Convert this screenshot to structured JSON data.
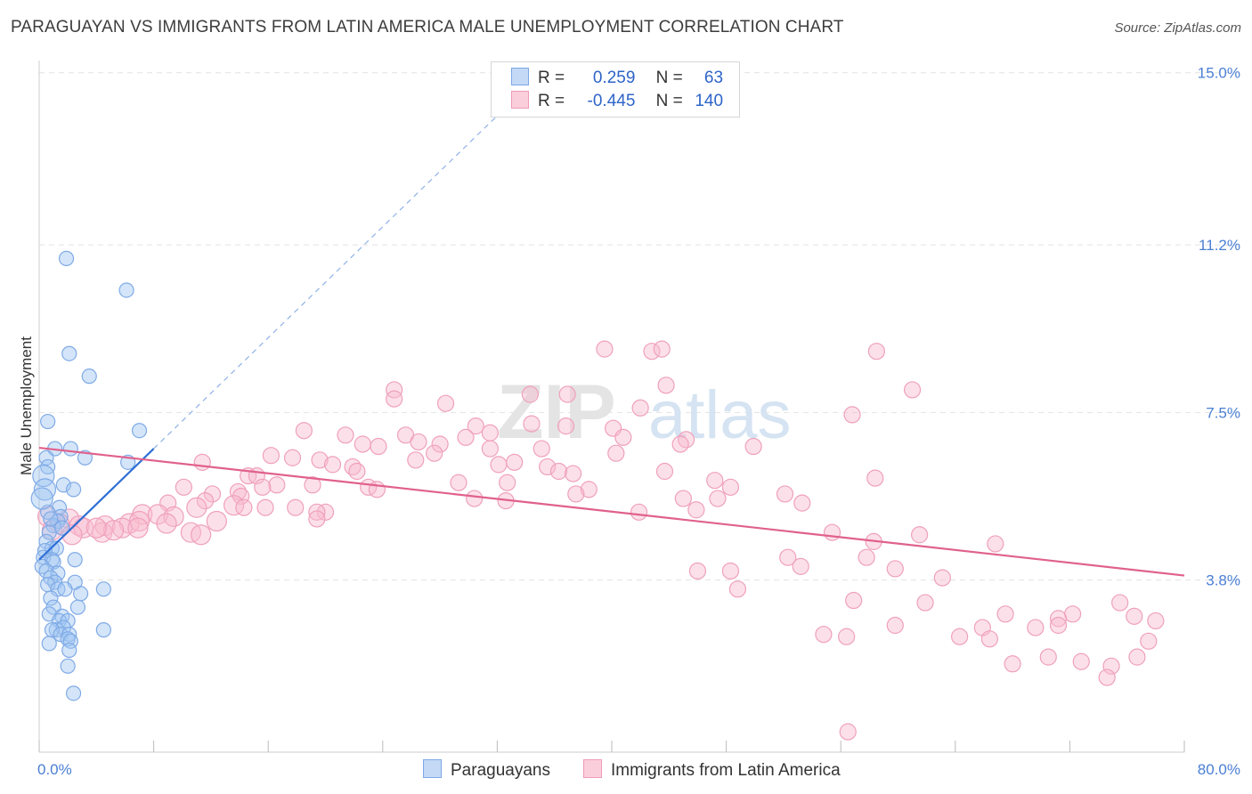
{
  "title": "PARAGUAYAN VS IMMIGRANTS FROM LATIN AMERICA MALE UNEMPLOYMENT CORRELATION CHART",
  "source": "Source: ZipAtlas.com",
  "watermark": {
    "zip": "ZIP",
    "atlas": "atlas"
  },
  "colors": {
    "blue": "#8ab4ec",
    "blue_line": "#2e6fd6",
    "pink": "#f0a2bd",
    "pink_line": "#e0618c",
    "tick": "#4a7fd4"
  },
  "legend_top": [
    {
      "r_label": "R =",
      "r_value": "0.259",
      "n_label": "N =",
      "n_value": "63"
    },
    {
      "r_label": "R =",
      "r_value": "-0.445",
      "n_label": "N =",
      "n_value": "140"
    }
  ],
  "legend_bottom": [
    {
      "label": "Paraguayans"
    },
    {
      "label": "Immigrants from Latin America"
    }
  ],
  "chart_data": {
    "type": "scatter",
    "title": "PARAGUAYAN VS IMMIGRANTS FROM LATIN AMERICA MALE UNEMPLOYMENT CORRELATION CHART",
    "xlabel": "",
    "ylabel": "Male Unemployment",
    "xlim": [
      0,
      80
    ],
    "ylim": [
      0,
      15.5
    ],
    "x_tick_labels": [
      "0.0%",
      "80.0%"
    ],
    "y_ticks": [
      3.8,
      7.5,
      11.2,
      15.0
    ],
    "y_tick_labels": [
      "3.8%",
      "7.5%",
      "11.2%",
      "15.0%"
    ],
    "grid": true,
    "series": [
      {
        "name": "Paraguayans",
        "r": 0.259,
        "n": 63,
        "trend": {
          "x0": 0,
          "y0": 4.25,
          "x1": 8,
          "y1": 6.7,
          "dash_to_x": 32
        },
        "points": [
          [
            1.9,
            10.9
          ],
          [
            6.1,
            10.2
          ],
          [
            2.1,
            8.8
          ],
          [
            3.5,
            8.3
          ],
          [
            0.6,
            7.3
          ],
          [
            7.0,
            7.1
          ],
          [
            1.1,
            6.7
          ],
          [
            2.2,
            6.7
          ],
          [
            3.2,
            6.5
          ],
          [
            0.5,
            6.5
          ],
          [
            6.2,
            6.4
          ],
          [
            0.6,
            6.3
          ],
          [
            0.3,
            6.1
          ],
          [
            0.4,
            5.8
          ],
          [
            1.7,
            5.9
          ],
          [
            2.4,
            5.8
          ],
          [
            1.4,
            5.4
          ],
          [
            0.6,
            5.3
          ],
          [
            1.5,
            5.2
          ],
          [
            1.3,
            5.1
          ],
          [
            1.0,
            5.0
          ],
          [
            0.7,
            4.85
          ],
          [
            1.6,
            4.95
          ],
          [
            0.5,
            4.65
          ],
          [
            0.9,
            4.5
          ],
          [
            1.2,
            4.5
          ],
          [
            0.4,
            4.45
          ],
          [
            0.3,
            4.3
          ],
          [
            0.9,
            4.25
          ],
          [
            2.5,
            4.25
          ],
          [
            1.0,
            4.2
          ],
          [
            0.2,
            4.1
          ],
          [
            0.5,
            4.0
          ],
          [
            1.3,
            3.95
          ],
          [
            0.8,
            3.85
          ],
          [
            1.1,
            3.75
          ],
          [
            0.6,
            3.7
          ],
          [
            2.5,
            3.75
          ],
          [
            1.3,
            3.6
          ],
          [
            1.8,
            3.6
          ],
          [
            4.5,
            3.6
          ],
          [
            2.9,
            3.5
          ],
          [
            0.8,
            3.4
          ],
          [
            1.0,
            3.2
          ],
          [
            2.7,
            3.2
          ],
          [
            0.7,
            3.05
          ],
          [
            1.6,
            3.0
          ],
          [
            1.4,
            2.9
          ],
          [
            2.0,
            2.9
          ],
          [
            1.2,
            2.7
          ],
          [
            1.7,
            2.75
          ],
          [
            0.9,
            2.7
          ],
          [
            4.5,
            2.7
          ],
          [
            1.5,
            2.6
          ],
          [
            2.1,
            2.6
          ],
          [
            2.0,
            2.5
          ],
          [
            2.2,
            2.45
          ],
          [
            0.7,
            2.4
          ],
          [
            2.1,
            2.25
          ],
          [
            2.0,
            1.9
          ],
          [
            2.4,
            1.3
          ],
          [
            0.2,
            5.6
          ],
          [
            0.8,
            5.15
          ]
        ]
      },
      {
        "name": "Immigrants from Latin America",
        "r": -0.445,
        "n": 140,
        "trend": {
          "x0": 0,
          "y0": 6.72,
          "x1": 80,
          "y1": 3.9
        },
        "points": [
          [
            39.5,
            8.9
          ],
          [
            42.8,
            8.85
          ],
          [
            43.5,
            8.9
          ],
          [
            58.5,
            8.85
          ],
          [
            43.8,
            8.1
          ],
          [
            61.0,
            8.0
          ],
          [
            24.8,
            8.0
          ],
          [
            34.3,
            7.9
          ],
          [
            36.9,
            7.9
          ],
          [
            24.8,
            7.8
          ],
          [
            28.4,
            7.7
          ],
          [
            42.0,
            7.6
          ],
          [
            56.8,
            7.45
          ],
          [
            34.4,
            7.25
          ],
          [
            30.5,
            7.2
          ],
          [
            36.8,
            7.2
          ],
          [
            40.1,
            7.15
          ],
          [
            18.5,
            7.1
          ],
          [
            31.5,
            7.05
          ],
          [
            25.6,
            7.0
          ],
          [
            21.4,
            7.0
          ],
          [
            40.8,
            6.95
          ],
          [
            29.8,
            6.95
          ],
          [
            26.5,
            6.85
          ],
          [
            22.6,
            6.8
          ],
          [
            45.2,
            6.9
          ],
          [
            28.0,
            6.8
          ],
          [
            23.7,
            6.75
          ],
          [
            31.5,
            6.7
          ],
          [
            35.1,
            6.7
          ],
          [
            44.8,
            6.8
          ],
          [
            49.9,
            6.75
          ],
          [
            27.6,
            6.6
          ],
          [
            40.3,
            6.6
          ],
          [
            16.2,
            6.55
          ],
          [
            17.7,
            6.5
          ],
          [
            19.6,
            6.45
          ],
          [
            26.3,
            6.45
          ],
          [
            11.4,
            6.4
          ],
          [
            20.5,
            6.35
          ],
          [
            33.2,
            6.4
          ],
          [
            21.9,
            6.3
          ],
          [
            32.1,
            6.35
          ],
          [
            35.5,
            6.3
          ],
          [
            36.3,
            6.2
          ],
          [
            14.6,
            6.1
          ],
          [
            15.2,
            6.1
          ],
          [
            22.2,
            6.2
          ],
          [
            37.3,
            6.15
          ],
          [
            43.7,
            6.2
          ],
          [
            29.3,
            5.95
          ],
          [
            19.1,
            5.9
          ],
          [
            16.6,
            5.9
          ],
          [
            23.0,
            5.85
          ],
          [
            32.7,
            5.95
          ],
          [
            47.2,
            6.0
          ],
          [
            58.4,
            6.05
          ],
          [
            10.1,
            5.85
          ],
          [
            15.6,
            5.85
          ],
          [
            12.1,
            5.7
          ],
          [
            13.9,
            5.75
          ],
          [
            23.6,
            5.8
          ],
          [
            38.4,
            5.8
          ],
          [
            48.3,
            5.85
          ],
          [
            14.1,
            5.65
          ],
          [
            37.5,
            5.7
          ],
          [
            30.4,
            5.6
          ],
          [
            32.6,
            5.55
          ],
          [
            47.4,
            5.6
          ],
          [
            52.1,
            5.7
          ],
          [
            11.6,
            5.55
          ],
          [
            9.0,
            5.5
          ],
          [
            45.0,
            5.6
          ],
          [
            53.3,
            5.5
          ],
          [
            11.0,
            5.4
          ],
          [
            13.6,
            5.45
          ],
          [
            14.3,
            5.4
          ],
          [
            15.8,
            5.4
          ],
          [
            17.9,
            5.4
          ],
          [
            20.0,
            5.3
          ],
          [
            7.2,
            5.25
          ],
          [
            8.3,
            5.25
          ],
          [
            9.4,
            5.2
          ],
          [
            19.4,
            5.3
          ],
          [
            45.9,
            5.35
          ],
          [
            41.9,
            5.3
          ],
          [
            0.6,
            5.2
          ],
          [
            2.1,
            5.15
          ],
          [
            6.3,
            5.05
          ],
          [
            7.0,
            5.1
          ],
          [
            8.9,
            5.05
          ],
          [
            12.4,
            5.1
          ],
          [
            19.4,
            5.15
          ],
          [
            1.4,
            5.05
          ],
          [
            2.8,
            5.0
          ],
          [
            4.6,
            5.0
          ],
          [
            5.8,
            4.95
          ],
          [
            6.9,
            4.95
          ],
          [
            0.9,
            4.9
          ],
          [
            3.1,
            4.95
          ],
          [
            4.4,
            4.85
          ],
          [
            5.2,
            4.9
          ],
          [
            10.6,
            4.85
          ],
          [
            11.3,
            4.8
          ],
          [
            4.0,
            4.95
          ],
          [
            2.3,
            4.8
          ],
          [
            55.4,
            4.85
          ],
          [
            61.5,
            4.8
          ],
          [
            58.3,
            4.65
          ],
          [
            66.8,
            4.6
          ],
          [
            52.3,
            4.3
          ],
          [
            57.8,
            4.3
          ],
          [
            53.2,
            4.1
          ],
          [
            59.8,
            4.05
          ],
          [
            46.0,
            4.0
          ],
          [
            48.3,
            4.0
          ],
          [
            63.1,
            3.85
          ],
          [
            48.8,
            3.6
          ],
          [
            56.9,
            3.35
          ],
          [
            61.9,
            3.3
          ],
          [
            75.5,
            3.3
          ],
          [
            67.5,
            3.05
          ],
          [
            72.2,
            3.05
          ],
          [
            76.5,
            3.0
          ],
          [
            59.8,
            2.8
          ],
          [
            78.0,
            2.9
          ],
          [
            71.2,
            2.95
          ],
          [
            54.8,
            2.6
          ],
          [
            65.9,
            2.75
          ],
          [
            56.4,
            2.55
          ],
          [
            64.3,
            2.55
          ],
          [
            66.4,
            2.5
          ],
          [
            69.6,
            2.75
          ],
          [
            71.2,
            2.8
          ],
          [
            77.5,
            2.45
          ],
          [
            72.8,
            2.0
          ],
          [
            74.9,
            1.9
          ],
          [
            76.7,
            2.1
          ],
          [
            68.0,
            1.95
          ],
          [
            70.5,
            2.1
          ],
          [
            74.6,
            1.65
          ],
          [
            56.5,
            0.45
          ]
        ]
      }
    ]
  }
}
